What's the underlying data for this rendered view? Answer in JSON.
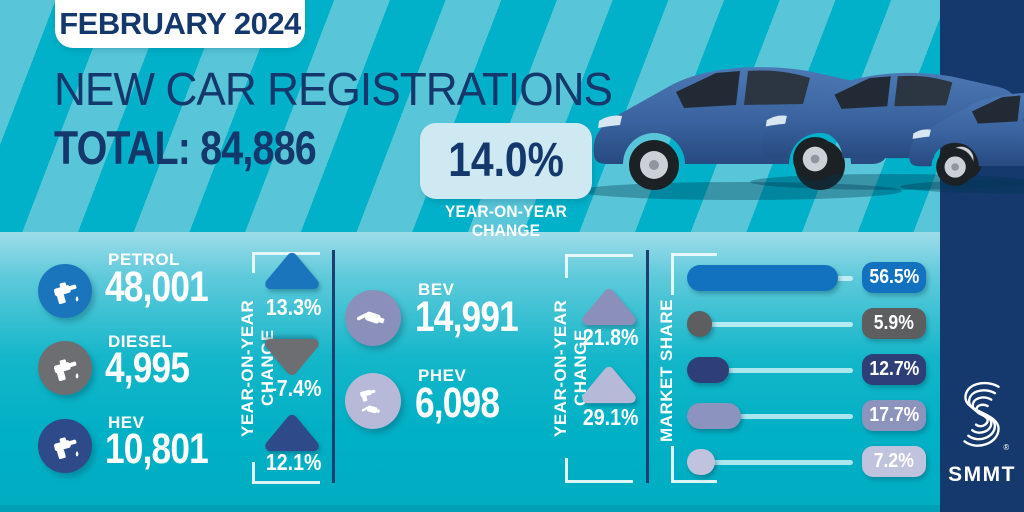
{
  "badge": {
    "text": "FEBRUARY 2024"
  },
  "header": {
    "title": "NEW CAR REGISTRATIONS",
    "total_label": "TOTAL:",
    "total_value": "84,886"
  },
  "yoy_box": {
    "value": "14.0%",
    "caption": "YEAR-ON-YEAR CHANGE"
  },
  "labels": {
    "yoy": "YEAR-ON-YEAR CHANGE",
    "market_share": "MARKET SHARE"
  },
  "fuel": [
    {
      "label": "PETROL",
      "value": "48,001",
      "yoy": "13.3%",
      "yoy_dir": "up",
      "color": "#1b75bc",
      "icon": "fuel-nozzle"
    },
    {
      "label": "DIESEL",
      "value": "4,995",
      "yoy": "–7.4%",
      "yoy_dir": "down",
      "color": "#6d6e71",
      "icon": "fuel-nozzle"
    },
    {
      "label": "HEV",
      "value": "10,801",
      "yoy": "12.1%",
      "yoy_dir": "up",
      "color": "#2e4a88",
      "icon": "fuel-nozzle"
    }
  ],
  "ev": [
    {
      "label": "BEV",
      "value": "14,991",
      "yoy": "21.8%",
      "yoy_dir": "up",
      "color": "#8a90ba",
      "icon": "charging-plug"
    },
    {
      "label": "PHEV",
      "value": "6,098",
      "yoy": "29.1%",
      "yoy_dir": "up",
      "color": "#b6bad8",
      "icon": "nozzle-and-plug"
    }
  ],
  "market_share": [
    {
      "value": "56.5%",
      "pct": 56.5,
      "color": "#1272bf"
    },
    {
      "value": "5.9%",
      "pct": 5.9,
      "color": "#5d5e60"
    },
    {
      "value": "12.7%",
      "pct": 12.7,
      "color": "#2e3f78"
    },
    {
      "value": "17.7%",
      "pct": 17.7,
      "color": "#8c93bd"
    },
    {
      "value": "7.2%",
      "pct": 7.2,
      "color": "#c0c3dd"
    }
  ],
  "logo": {
    "text": "SMMT",
    "registered": "®"
  },
  "colors": {
    "navy_text": "#14386c",
    "navy_band": "#15386d",
    "stripe_light": "#58c6d8",
    "stripe_dark": "#00b1c9",
    "yoy_box_bg": "#cfe9f3"
  },
  "chart_data": {
    "type": "bar",
    "title": "NEW CAR REGISTRATIONS - FEBRUARY 2024",
    "total_registrations": 84886,
    "total_yoy_change_pct": 14.0,
    "categories": [
      "PETROL",
      "DIESEL",
      "HEV",
      "BEV",
      "PHEV"
    ],
    "series": [
      {
        "name": "registrations",
        "values": [
          48001,
          4995,
          10801,
          14991,
          6098
        ]
      },
      {
        "name": "yoy_change_pct",
        "values": [
          13.3,
          -7.4,
          12.1,
          21.8,
          29.1
        ]
      }
    ],
    "market_share": {
      "note": "share bars shown right of chart; category order matches bar order",
      "values_pct": [
        56.5,
        5.9,
        12.7,
        17.7,
        7.2
      ]
    },
    "legend_position": "none",
    "grid": false
  }
}
